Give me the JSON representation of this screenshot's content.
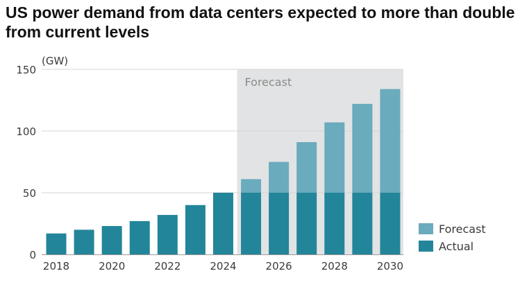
{
  "chart_data": {
    "type": "bar",
    "title": "US power demand from data centers expected to more than double from current levels",
    "unit_label": "(GW)",
    "xlabel": "",
    "ylabel": "",
    "ylim": [
      0,
      150
    ],
    "y_ticks": [
      "0",
      "50",
      "100",
      "150"
    ],
    "x_tick_labels": [
      "2018",
      "2020",
      "2022",
      "2024",
      "2026",
      "2028",
      "2030"
    ],
    "categories": [
      "2018",
      "2019",
      "2020",
      "2021",
      "2022",
      "2023",
      "2024",
      "2025",
      "2026",
      "2027",
      "2028",
      "2029",
      "2030"
    ],
    "series": [
      {
        "name": "Actual",
        "color": "#23859a",
        "values": [
          17,
          20,
          23,
          27,
          32,
          40,
          50,
          50,
          50,
          50,
          50,
          50,
          50
        ]
      },
      {
        "name": "Forecast",
        "color": "#6aabbd",
        "values": [
          0,
          0,
          0,
          0,
          0,
          0,
          0,
          11,
          25,
          41,
          57,
          72,
          84
        ]
      }
    ],
    "forecast_region": {
      "label": "Forecast",
      "start_category": "2025",
      "end_category": "2030",
      "color": "#e2e3e4"
    },
    "legend": {
      "position": "bottom-right",
      "entries": [
        "Forecast",
        "Actual"
      ]
    },
    "grid": true,
    "stacked": true
  }
}
